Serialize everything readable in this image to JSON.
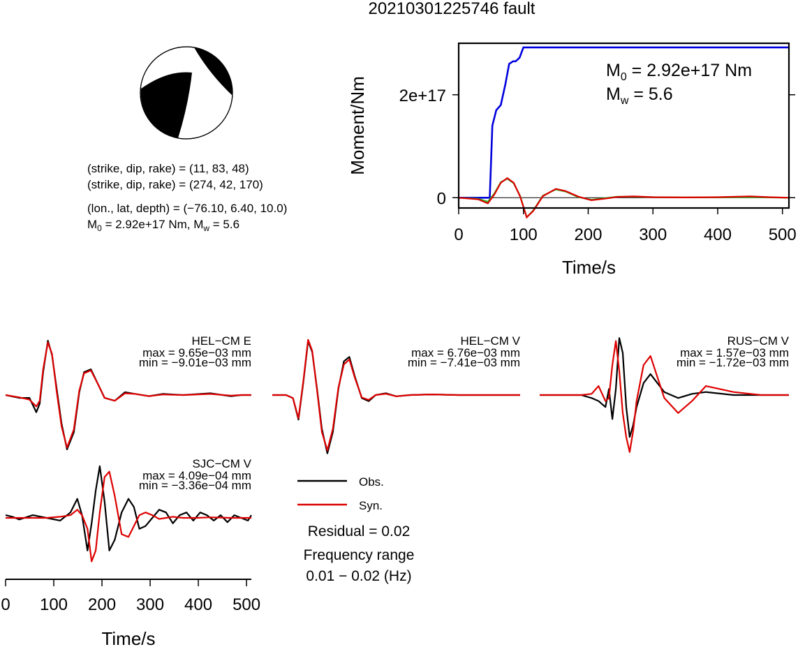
{
  "page_title": "20210301225746 fault",
  "mechanism": {
    "line1": "(strike, dip, rake) = (11, 83, 48)",
    "line2": "(strike, dip, rake) = (274, 42, 170)",
    "line3": "(lon., lat, depth) = (−76.10, 6.40, 10.0)",
    "m0_label": "M",
    "m0_sub": "0",
    "m0_value": " = 2.92e+17 Nm, M",
    "mw_sub": "w",
    "mw_value": " = 5.6"
  },
  "colors": {
    "obs": "#000000",
    "syn": "#dd0000",
    "moment": "#0000dd",
    "stf_green": "#22bb22"
  },
  "chart_data": [
    {
      "type": "line",
      "id": "moment-rate",
      "title": "",
      "xlabel": "Time/s",
      "ylabel": "Moment/Nm",
      "xlim": [
        0,
        510
      ],
      "ylim": [
        -2e+16,
        3e+17
      ],
      "xticks": [
        0,
        100,
        200,
        300,
        400,
        500
      ],
      "yticks": [
        0,
        2e+17
      ],
      "yticklabels": [
        "0",
        "2e+17"
      ],
      "annotation": {
        "m0": "M",
        "m0_sub": "0",
        "m0_val": " = 2.92e+17 Nm",
        "mw": "M",
        "mw_sub": "w",
        "mw_val": " = 5.6"
      },
      "series": [
        {
          "key": "cumulative",
          "color": "#0000dd",
          "x": [
            0,
            48,
            52,
            58,
            65,
            72,
            78,
            84,
            88,
            94,
            100,
            105,
            510
          ],
          "y": [
            0,
            0,
            1.4e+17,
            1.7e+17,
            1.8e+17,
            2.2e+17,
            2.6e+17,
            2.65e+17,
            2.65e+17,
            2.72e+17,
            2.92e+17,
            2.92e+17,
            2.92e+17
          ]
        },
        {
          "key": "rate_green",
          "color": "#22bb22",
          "x": [
            0,
            30,
            45,
            55,
            65,
            75,
            85,
            95,
            105,
            115,
            130,
            150,
            165,
            185,
            205,
            225,
            245,
            270,
            300,
            350,
            400,
            450,
            480,
            510
          ],
          "y": [
            0,
            -2000000000000000.0,
            -8000000000000000.0,
            8000000000000000.0,
            3e+16,
            3.7e+16,
            2.8e+16,
            3000000000000000.0,
            -3.8e+16,
            -2.5e+16,
            4000000000000000.0,
            1.6e+16,
            1.2e+16,
            1000000000000000.0,
            -4000000000000000.0,
            -1000000000000000.0,
            2000000000000000.0,
            2000000000000000.0,
            1000000000000000.0,
            500000000000000.0,
            500000000000000.0,
            1000000000000000.0,
            500000000000000.0,
            0
          ]
        },
        {
          "key": "rate_red",
          "color": "#dd0000",
          "x": [
            0,
            30,
            45,
            55,
            65,
            75,
            85,
            95,
            105,
            115,
            130,
            150,
            165,
            185,
            205,
            225,
            245,
            270,
            300,
            350,
            400,
            450,
            480,
            510
          ],
          "y": [
            0,
            -3000000000000000.0,
            -1.1e+16,
            6000000000000000.0,
            2.9e+16,
            3.8e+16,
            2.9e+16,
            2000000000000000.0,
            -3.8e+16,
            -2.6e+16,
            3000000000000000.0,
            1.7e+16,
            1.3e+16,
            2000000000000000.0,
            -5000000000000000.0,
            -2000000000000000.0,
            1500000000000000.0,
            2500000000000000.0,
            1000000000000000.0,
            500000000000000.0,
            1000000000000000.0,
            2500000000000000.0,
            1000000000000000.0,
            0
          ]
        }
      ]
    },
    {
      "type": "line",
      "id": "HEL-CM-E",
      "station": "HEL−CM E",
      "max_label": "max = 9.65e−03 mm",
      "min_label": "min = −9.01e−03 mm",
      "ylim": [
        -1,
        1
      ],
      "series": [
        {
          "name": "Obs.",
          "x": [
            0,
            20,
            35,
            45,
            50,
            55,
            62,
            68,
            75,
            82,
            90,
            100,
            108,
            115,
            125,
            135,
            145,
            160,
            175,
            190,
            210,
            230,
            260,
            300,
            330,
            345,
            360
          ],
          "y": [
            0,
            -0.05,
            -0.05,
            -0.3,
            -0.15,
            0.4,
            0.95,
            0.7,
            0.1,
            -0.5,
            -0.95,
            -0.65,
            0.05,
            0.4,
            0.45,
            0.2,
            -0.05,
            -0.1,
            0.05,
            0.02,
            -0.02,
            0.02,
            0,
            0.03,
            -0.02,
            0,
            0
          ]
        },
        {
          "name": "Syn.",
          "x": [
            0,
            20,
            35,
            45,
            50,
            55,
            62,
            68,
            75,
            82,
            90,
            100,
            108,
            115,
            125,
            135,
            145,
            160,
            175,
            190,
            210,
            230,
            260,
            300,
            330,
            345,
            360
          ],
          "y": [
            0,
            -0.04,
            -0.08,
            -0.2,
            -0.1,
            0.45,
            0.92,
            0.72,
            0.05,
            -0.55,
            -0.92,
            -0.6,
            0.08,
            0.38,
            0.43,
            0.2,
            -0.05,
            -0.1,
            0.03,
            0.02,
            -0.02,
            0.01,
            0,
            0.02,
            -0.01,
            0,
            0
          ]
        }
      ]
    },
    {
      "type": "line",
      "id": "HEL-CM-V",
      "station": "HEL−CM V",
      "max_label": "max = 6.76e−03 mm",
      "min_label": "min = −7.41e−03 mm",
      "ylim": [
        -1,
        1
      ],
      "series": [
        {
          "name": "Obs.",
          "x": [
            0,
            20,
            30,
            38,
            45,
            52,
            58,
            65,
            72,
            80,
            88,
            96,
            104,
            112,
            120,
            130,
            140,
            150,
            165,
            180,
            200,
            230,
            270,
            320,
            360
          ],
          "y": [
            0,
            0,
            -0.05,
            -0.4,
            0.2,
            0.88,
            0.7,
            0.1,
            -0.55,
            -0.95,
            -0.6,
            0.1,
            0.55,
            0.62,
            0.3,
            -0.05,
            -0.1,
            0,
            0.03,
            -0.02,
            0,
            0.01,
            0,
            0,
            0
          ]
        },
        {
          "name": "Syn.",
          "x": [
            0,
            20,
            30,
            38,
            45,
            52,
            58,
            65,
            72,
            80,
            88,
            96,
            104,
            112,
            120,
            130,
            140,
            150,
            165,
            180,
            200,
            230,
            270,
            320,
            360
          ],
          "y": [
            0,
            0,
            -0.05,
            -0.38,
            0.22,
            0.9,
            0.72,
            0.08,
            -0.6,
            -0.9,
            -0.55,
            0.12,
            0.5,
            0.58,
            0.28,
            -0.04,
            -0.08,
            0,
            0.02,
            -0.02,
            0,
            0.01,
            0,
            0,
            0
          ]
        }
      ]
    },
    {
      "type": "line",
      "id": "RUS-CM-V",
      "station": "RUS−CM V",
      "max_label": "max = 1.57e−03 mm",
      "min_label": "min = −1.72e−03 mm",
      "ylim": [
        -1,
        1
      ],
      "series": [
        {
          "name": "Obs.",
          "x": [
            0,
            40,
            60,
            75,
            85,
            95,
            100,
            105,
            110,
            115,
            120,
            125,
            130,
            135,
            140,
            150,
            160,
            170,
            180,
            200,
            220,
            240,
            280,
            320,
            360
          ],
          "y": [
            0,
            0,
            0,
            -0.05,
            -0.1,
            -0.2,
            0.1,
            -0.4,
            0.1,
            0.95,
            0.7,
            -0.2,
            -0.7,
            -0.5,
            -0.2,
            0.2,
            0.35,
            0.2,
            0.05,
            -0.05,
            0.02,
            0.05,
            0,
            0,
            0
          ]
        },
        {
          "name": "Syn.",
          "x": [
            0,
            40,
            60,
            75,
            85,
            95,
            100,
            105,
            110,
            115,
            120,
            125,
            130,
            135,
            140,
            150,
            160,
            170,
            180,
            200,
            220,
            240,
            280,
            320,
            360
          ],
          "y": [
            0,
            0,
            0,
            0.02,
            0.15,
            -0.1,
            -0.05,
            0.5,
            0.9,
            0.4,
            -0.3,
            -0.7,
            -0.95,
            -0.6,
            -0.1,
            0.5,
            0.65,
            0.3,
            -0.05,
            -0.3,
            -0.1,
            0.15,
            0.05,
            0,
            0
          ]
        }
      ]
    },
    {
      "type": "line",
      "id": "SJC-CM-V",
      "station": "SJC−CM V",
      "max_label": "max = 4.09e−04 mm",
      "min_label": "min = −3.36e−04 mm",
      "ylim": [
        -1,
        1
      ],
      "xlabel": "Time/s",
      "xlim": [
        0,
        510
      ],
      "xticks": [
        0,
        100,
        200,
        300,
        400,
        500
      ],
      "series": [
        {
          "name": "Obs.",
          "x": [
            0,
            10,
            20,
            40,
            60,
            80,
            95,
            105,
            112,
            120,
            126,
            132,
            138,
            145,
            152,
            160,
            170,
            180,
            188,
            196,
            205,
            215,
            225,
            235,
            245,
            255,
            265,
            275,
            285,
            295,
            305,
            315,
            325,
            335,
            345,
            355,
            360
          ],
          "y": [
            0.05,
            0.02,
            -0.03,
            0.05,
            0,
            -0.05,
            0.1,
            0.35,
            0.05,
            -0.6,
            -0.1,
            0.5,
            0.95,
            0.3,
            -0.6,
            -0.4,
            0.1,
            0.35,
            0.2,
            -0.2,
            -0.15,
            0,
            0.15,
            0.1,
            -0.1,
            0.05,
            0.1,
            -0.05,
            0.1,
            0.05,
            -0.05,
            0.05,
            -0.08,
            0.05,
            0,
            -0.05,
            0.05
          ]
        },
        {
          "name": "Syn.",
          "x": [
            0,
            20,
            40,
            60,
            80,
            95,
            105,
            112,
            120,
            126,
            132,
            138,
            145,
            152,
            160,
            170,
            180,
            188,
            196,
            205,
            215,
            225,
            235,
            245,
            260,
            280,
            300,
            330,
            360
          ],
          "y": [
            0,
            0,
            0,
            0,
            0.02,
            0.05,
            0.15,
            0.05,
            -0.2,
            -0.8,
            -0.6,
            0.1,
            0.75,
            0.85,
            0.4,
            -0.3,
            -0.35,
            -0.15,
            0.05,
            0.1,
            0.05,
            -0.02,
            0,
            0.02,
            0,
            0,
            0.01,
            0,
            0
          ]
        }
      ]
    }
  ],
  "legend": {
    "obs": "Obs.",
    "syn": "Syn."
  },
  "summary": {
    "residual": "Residual = 0.02",
    "freq_title": "Frequency range",
    "freq_value": "0.01 − 0.02 (Hz)"
  }
}
